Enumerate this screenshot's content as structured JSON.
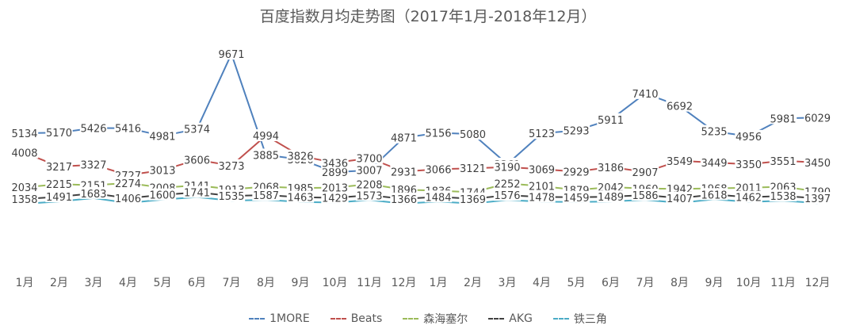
{
  "chart_data": {
    "type": "line",
    "title": "百度指数月均走势图（2017年1月-2018年12月）",
    "categories": [
      "1月",
      "2月",
      "3月",
      "4月",
      "5月",
      "6月",
      "7月",
      "8月",
      "9月",
      "10月",
      "11月",
      "12月",
      "1月",
      "2月",
      "3月",
      "4月",
      "5月",
      "6月",
      "7月",
      "8月",
      "9月",
      "10月",
      "11月",
      "12月"
    ],
    "series": [
      {
        "name": "1MORE",
        "color": "#4F81BD",
        "values": [
          5134,
          5170,
          5426,
          5416,
          4981,
          5374,
          9671,
          3885,
          3626,
          2899,
          3007,
          4871,
          5156,
          5080,
          3361,
          5123,
          5293,
          5911,
          7410,
          6692,
          5235,
          4956,
          5981,
          6029
        ]
      },
      {
        "name": "Beats",
        "color": "#C0504D",
        "values": [
          4008,
          3217,
          3327,
          2727,
          3013,
          3606,
          3273,
          4994,
          3826,
          3436,
          3700,
          2931,
          3066,
          3121,
          3190,
          3069,
          2929,
          3186,
          2907,
          3549,
          3449,
          3350,
          3551,
          3450
        ]
      },
      {
        "name": "森海塞尔",
        "color": "#9BBB59",
        "values": [
          2034,
          2215,
          2151,
          2274,
          2008,
          2141,
          1913,
          2068,
          1985,
          2013,
          2208,
          1896,
          1836,
          1744,
          2252,
          2101,
          1879,
          2042,
          1960,
          1942,
          1968,
          2011,
          2063,
          1790
        ]
      },
      {
        "name": "AKG",
        "color": "#404040",
        "values": [
          1358,
          1491,
          1683,
          1406,
          1600,
          1741,
          1535,
          1587,
          1463,
          1429,
          1573,
          1366,
          1484,
          1369,
          1576,
          1478,
          1459,
          1489,
          1586,
          1407,
          1618,
          1462,
          1538,
          1397
        ]
      },
      {
        "name": "铁三角",
        "color": "#4BACC6",
        "values": [
          1358,
          1491,
          1683,
          1406,
          1600,
          1741,
          1535,
          1587,
          1463,
          1429,
          1573,
          1366,
          1484,
          1369,
          1576,
          1478,
          1459,
          1489,
          1586,
          1407,
          1618,
          1462,
          1538,
          1397
        ]
      }
    ],
    "ylim": [
      0,
      10000
    ],
    "grid": false,
    "legend": "bottom"
  }
}
